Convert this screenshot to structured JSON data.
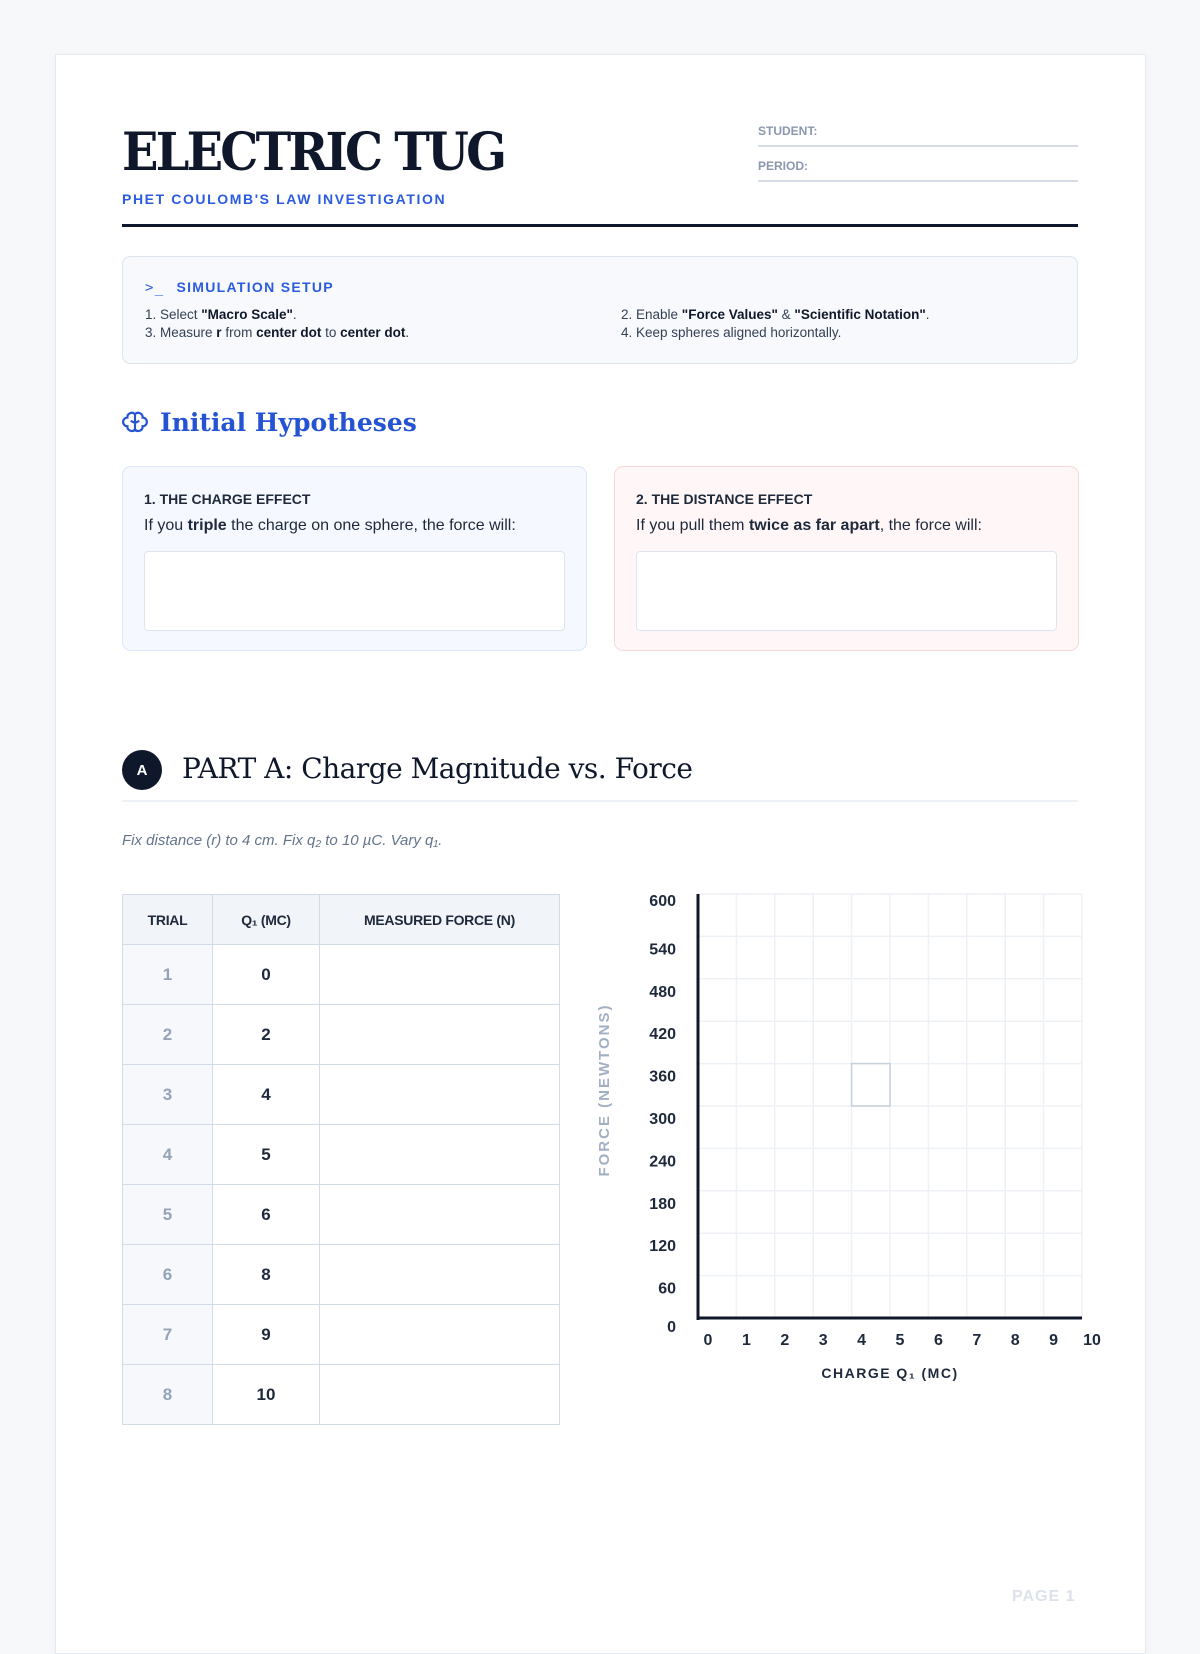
{
  "header": {
    "title": "ELECTRIC TUG",
    "subtitle": "PHET COULOMB'S LAW INVESTIGATION",
    "student_label": "STUDENT:",
    "period_label": "PERIOD:"
  },
  "setup": {
    "icon": "terminal-icon",
    "heading": "SIMULATION SETUP",
    "steps": [
      {
        "pre": "1. Select ",
        "b1": "\"Macro Scale\"",
        "mid": ".",
        "b2": "",
        "post": ""
      },
      {
        "pre": "2. Enable ",
        "b1": "\"Force Values\"",
        "mid": " & ",
        "b2": "\"Scientific Notation\"",
        "post": "."
      },
      {
        "pre": "3. Measure ",
        "b1": "r",
        "mid": " from ",
        "b2": "center dot",
        "post": " to ",
        "b3": "center dot",
        "end": "."
      },
      {
        "pre": "4. Keep spheres aligned horizontally.",
        "b1": "",
        "mid": "",
        "b2": "",
        "post": ""
      }
    ]
  },
  "hypotheses": {
    "icon": "brain-icon",
    "heading": "Initial Hypotheses",
    "items": [
      {
        "label": "1. THE CHARGE EFFECT",
        "pre": "If you ",
        "bold": "triple",
        "post": " the charge on one sphere, the force will:",
        "answer": ""
      },
      {
        "label": "2. THE DISTANCE EFFECT",
        "pre": "If you pull them ",
        "bold": "twice as far apart",
        "post": ", the force will:",
        "answer": ""
      }
    ]
  },
  "partA": {
    "badge": "A",
    "title": "PART A: Charge Magnitude vs. Force",
    "instructions": "Fix distance (r) to 4 cm. Fix q₂ to 10 µC. Vary q₁.",
    "table": {
      "headers": [
        "TRIAL",
        "Q₁ (MC)",
        "MEASURED FORCE (N)"
      ],
      "rows": [
        [
          "1",
          "0",
          ""
        ],
        [
          "2",
          "2",
          ""
        ],
        [
          "3",
          "4",
          ""
        ],
        [
          "4",
          "5",
          ""
        ],
        [
          "5",
          "6",
          ""
        ],
        [
          "6",
          "8",
          ""
        ],
        [
          "7",
          "9",
          ""
        ],
        [
          "8",
          "10",
          ""
        ]
      ]
    }
  },
  "chart_data": {
    "type": "scatter",
    "xlabel": "CHARGE Q₁ (MC)",
    "ylabel": "FORCE (NEWTONS)",
    "xlim": [
      0,
      10
    ],
    "ylim": [
      0,
      600
    ],
    "xticks": [
      "0",
      "1",
      "2",
      "3",
      "4",
      "5",
      "6",
      "7",
      "8",
      "9",
      "10"
    ],
    "yticks": [
      "0",
      "60",
      "120",
      "180",
      "240",
      "300",
      "360",
      "420",
      "480",
      "540",
      "600"
    ],
    "grid": true,
    "points": []
  },
  "footer": {
    "page": "PAGE 1"
  }
}
